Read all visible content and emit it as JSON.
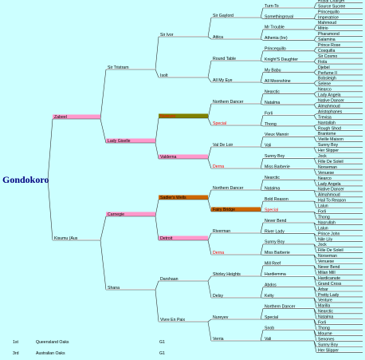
{
  "title": "Gondokoro",
  "pedigree": [
    [
      {
        "name": "Zabeel",
        "bar": "#ff99cc"
      },
      {
        "name": "Kisumu (Aus"
      }
    ],
    [
      {
        "name": "Sir Tristram"
      },
      {
        "name": "Lady Giselle",
        "bar": "#ff99cc"
      },
      {
        "name": "Carnegie",
        "bar": "#ff99cc"
      },
      {
        "name": "Shana"
      }
    ],
    [
      {
        "name": "Sir Ivor"
      },
      {
        "name": "Isolt"
      },
      {
        "name": "Nureyev",
        "bar": "#808000",
        "text_color": "#ff0000"
      },
      {
        "name": "Valderna",
        "bar": "#ff99cc"
      },
      {
        "name": "Sadler's Wells",
        "bar": "#cc6600"
      },
      {
        "name": "Detroit",
        "bar": "#ff99cc"
      },
      {
        "name": "Darshaan"
      },
      {
        "name": "Vivre En Paix"
      }
    ],
    [
      {
        "name": "Sir Gaylord"
      },
      {
        "name": "Attica"
      },
      {
        "name": "Round Table"
      },
      {
        "name": "All My Eye"
      },
      {
        "name": "Northern Dancer"
      },
      {
        "name": "Special",
        "text_color": "#ff0000"
      },
      {
        "name": "Val De Loir"
      },
      {
        "name": "Derna",
        "text_color": "#ff0000"
      },
      {
        "name": "Northern Dancer"
      },
      {
        "name": "Fairy Bridge",
        "bar": "#cc6600"
      },
      {
        "name": "Riverman"
      },
      {
        "name": "Derna",
        "text_color": "#ff0000"
      },
      {
        "name": "Shirley Heights"
      },
      {
        "name": "Delsy"
      },
      {
        "name": "Nureyev"
      },
      {
        "name": "Verria"
      }
    ],
    [
      {
        "name": "Turn-To"
      },
      {
        "name": "Somethingroyal"
      },
      {
        "name": "Mr Trouble"
      },
      {
        "name": "Athenia (Ire)"
      },
      {
        "name": "Princequillo"
      },
      {
        "name": "Knight'S Daughter"
      },
      {
        "name": "My Babu"
      },
      {
        "name": "All Moonshine"
      },
      {
        "name": "Nearctic"
      },
      {
        "name": "Natalma"
      },
      {
        "name": "Forli"
      },
      {
        "name": "Thong"
      },
      {
        "name": "Vieux Manoir"
      },
      {
        "name": "Vali"
      },
      {
        "name": "Sunny Boy"
      },
      {
        "name": "Miss Barberie"
      },
      {
        "name": "Nearctic"
      },
      {
        "name": "Natalma"
      },
      {
        "name": "Bold Reason"
      },
      {
        "name": "Special",
        "text_color": "#ff0000"
      },
      {
        "name": "Never Bend"
      },
      {
        "name": "River Lady"
      },
      {
        "name": "Sunny Boy"
      },
      {
        "name": "Miss Barberie"
      },
      {
        "name": "Mill Reef"
      },
      {
        "name": "Hardiemma"
      },
      {
        "name": "Abdos"
      },
      {
        "name": "Kelty"
      },
      {
        "name": "Northern Dancer"
      },
      {
        "name": "Special"
      },
      {
        "name": "Snob"
      },
      {
        "name": "Vali"
      }
    ],
    [
      {
        "name": "Royal Charger"
      },
      {
        "name": "Source Sucree"
      },
      {
        "name": "Princequillo"
      },
      {
        "name": "Imperatrice"
      },
      {
        "name": "Mahmoud"
      },
      {
        "name": "Mitrio"
      },
      {
        "name": "Pharamond"
      },
      {
        "name": "Salamina"
      },
      {
        "name": "Prince Rose"
      },
      {
        "name": "Cosquilla"
      },
      {
        "name": "Sir Cosmo"
      },
      {
        "name": "Fiola"
      },
      {
        "name": "Djebel"
      },
      {
        "name": "Perfume II"
      },
      {
        "name": "Bobsleigh"
      },
      {
        "name": "Selene"
      },
      {
        "name": "Nearco"
      },
      {
        "name": "Lady Angela"
      },
      {
        "name": "Native Dancer"
      },
      {
        "name": "Almahmoud"
      },
      {
        "name": "Aristophanes"
      },
      {
        "name": "Trevisa"
      },
      {
        "name": "Nantallah"
      },
      {
        "name": "Rough Shod"
      },
      {
        "name": "Brantome"
      },
      {
        "name": "Vieille Maison"
      },
      {
        "name": "Sunny Boy"
      },
      {
        "name": "Her Slipper"
      },
      {
        "name": "Jock"
      },
      {
        "name": "Fille De Soleil"
      },
      {
        "name": "Norseman"
      },
      {
        "name": "Venuese"
      },
      {
        "name": "Nearco"
      },
      {
        "name": "Lady Angela"
      },
      {
        "name": "Native Dancer"
      },
      {
        "name": "Almahmoud"
      },
      {
        "name": "Hail To Reason"
      },
      {
        "name": "Lalun"
      },
      {
        "name": "Forli"
      },
      {
        "name": "Thong"
      },
      {
        "name": "Nasrullah"
      },
      {
        "name": "Lalun"
      },
      {
        "name": "Prince John"
      },
      {
        "name": "Nile Lily"
      },
      {
        "name": "Jock"
      },
      {
        "name": "Fille De Soleil"
      },
      {
        "name": "Norseman"
      },
      {
        "name": "Venuese"
      },
      {
        "name": "Never Bend"
      },
      {
        "name": "Milan Mill"
      },
      {
        "name": "Hardicanute"
      },
      {
        "name": "Grand Cross"
      },
      {
        "name": "Arbar"
      },
      {
        "name": "Pretty Lady"
      },
      {
        "name": "Venture"
      },
      {
        "name": "Marilla"
      },
      {
        "name": "Nearctic"
      },
      {
        "name": "Natalma"
      },
      {
        "name": "Forli"
      },
      {
        "name": "Thong"
      },
      {
        "name": "Mourne"
      },
      {
        "name": "Senones"
      },
      {
        "name": "Sunny Boy"
      },
      {
        "name": "Her Slipper"
      }
    ]
  ],
  "results": [
    {
      "place": "1st",
      "race": "Queensland Oaks",
      "grade": "G1"
    },
    {
      "place": "3rd",
      "race": "Australian Oaks",
      "grade": "G1"
    }
  ]
}
